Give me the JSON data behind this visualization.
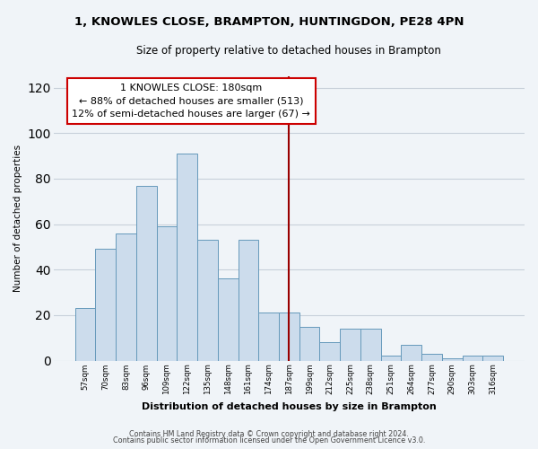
{
  "title": "1, KNOWLES CLOSE, BRAMPTON, HUNTINGDON, PE28 4PN",
  "subtitle": "Size of property relative to detached houses in Brampton",
  "xlabel": "Distribution of detached houses by size in Brampton",
  "ylabel": "Number of detached properties",
  "categories": [
    "57sqm",
    "70sqm",
    "83sqm",
    "96sqm",
    "109sqm",
    "122sqm",
    "135sqm",
    "148sqm",
    "161sqm",
    "174sqm",
    "187sqm",
    "199sqm",
    "212sqm",
    "225sqm",
    "238sqm",
    "251sqm",
    "264sqm",
    "277sqm",
    "290sqm",
    "303sqm",
    "316sqm"
  ],
  "values": [
    23,
    49,
    56,
    77,
    59,
    91,
    53,
    36,
    53,
    21,
    21,
    15,
    8,
    14,
    14,
    2,
    7,
    3,
    1,
    2,
    2
  ],
  "bar_color": "#ccdcec",
  "bar_edge_color": "#6699bb",
  "vline_x_index": 10.0,
  "vline_color": "#990000",
  "annotation_title": "1 KNOWLES CLOSE: 180sqm",
  "annotation_line1": "← 88% of detached houses are smaller (513)",
  "annotation_line2": "12% of semi-detached houses are larger (67) →",
  "annotation_box_color": "#ffffff",
  "annotation_box_edge": "#cc0000",
  "ylim": [
    0,
    125
  ],
  "yticks": [
    0,
    20,
    40,
    60,
    80,
    100,
    120
  ],
  "footer_line1": "Contains HM Land Registry data © Crown copyright and database right 2024.",
  "footer_line2": "Contains public sector information licensed under the Open Government Licence v3.0.",
  "bg_color": "#f0f4f8",
  "grid_color": "#c8d0da"
}
